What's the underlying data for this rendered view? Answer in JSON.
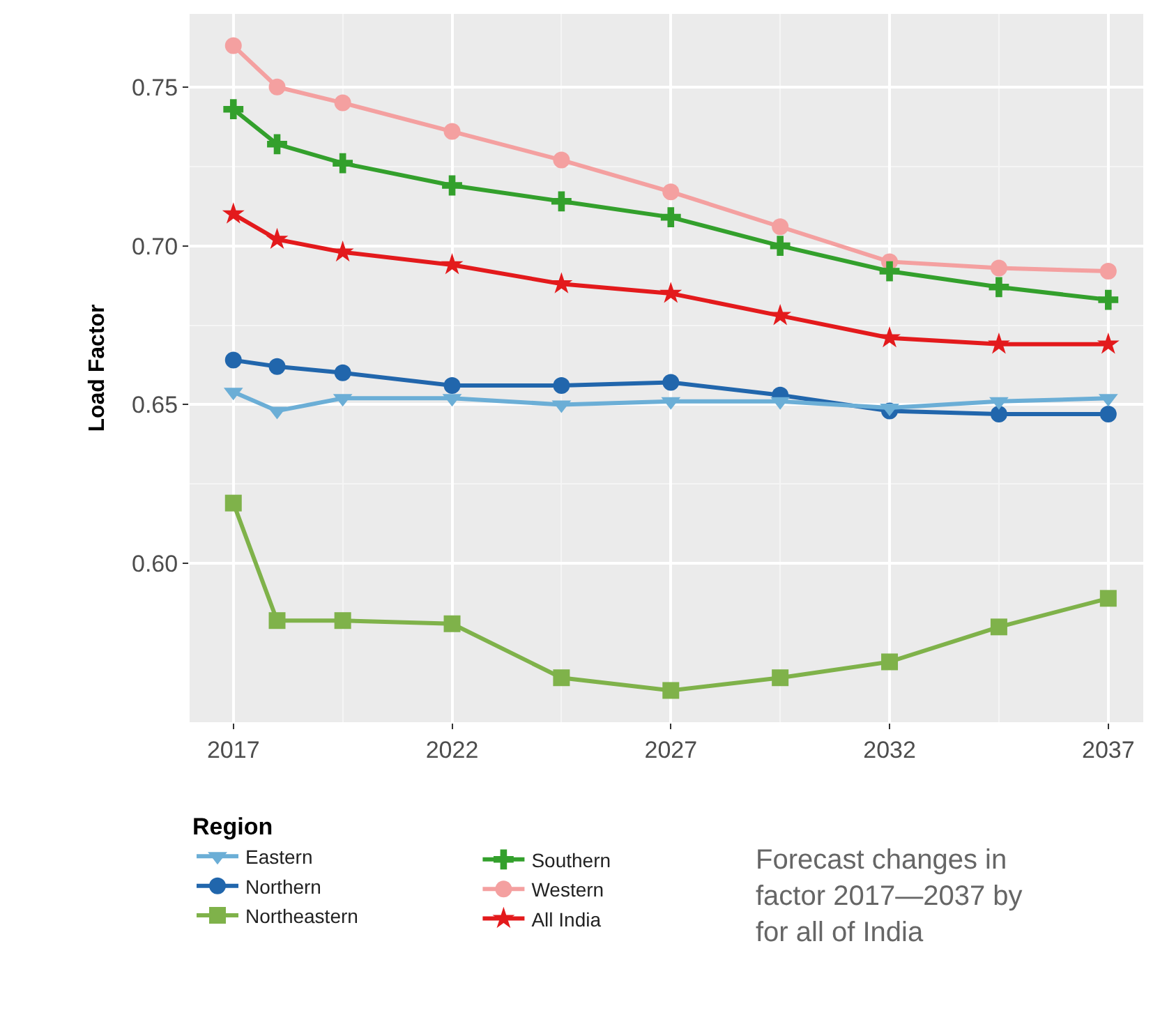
{
  "chart_data": {
    "type": "line",
    "ylabel": "Load Factor",
    "legend_title": "Region",
    "x": [
      2017,
      2018,
      2019.5,
      2022,
      2024.5,
      2027,
      2029.5,
      2032,
      2034.5,
      2037
    ],
    "xlim": [
      2016,
      2037.8
    ],
    "xticks": [
      2017,
      2022,
      2027,
      2032,
      2037
    ],
    "ylim": [
      0.55,
      0.773
    ],
    "yticks": [
      {
        "value": 0.6,
        "label": "0.60"
      },
      {
        "value": 0.65,
        "label": "0.65"
      },
      {
        "value": 0.7,
        "label": "0.70"
      },
      {
        "value": 0.75,
        "label": "0.75"
      }
    ],
    "grid": true,
    "legend": "bottom",
    "series": [
      {
        "name": "Eastern",
        "color": "#6baed6",
        "marker": "triangle",
        "values": [
          0.654,
          0.648,
          0.652,
          0.652,
          0.65,
          0.651,
          0.651,
          0.649,
          0.651,
          0.652
        ]
      },
      {
        "name": "Northern",
        "color": "#2166ac",
        "marker": "circle",
        "values": [
          0.664,
          0.662,
          0.66,
          0.656,
          0.656,
          0.657,
          0.653,
          0.648,
          0.647,
          0.647
        ]
      },
      {
        "name": "Northeastern",
        "color": "#7fb24a",
        "marker": "square",
        "values": [
          0.619,
          0.582,
          0.582,
          0.581,
          0.564,
          0.56,
          0.564,
          0.569,
          0.58,
          0.589
        ]
      },
      {
        "name": "Southern",
        "color": "#33a02c",
        "marker": "cross",
        "values": [
          0.743,
          0.732,
          0.726,
          0.719,
          0.714,
          0.709,
          0.7,
          0.692,
          0.687,
          0.683
        ]
      },
      {
        "name": "Western",
        "color": "#f4a0a0",
        "marker": "circle",
        "values": [
          0.763,
          0.75,
          0.745,
          0.736,
          0.727,
          0.717,
          0.706,
          0.695,
          0.693,
          0.692
        ]
      },
      {
        "name": "All India",
        "color": "#e31a1c",
        "marker": "star",
        "values": [
          0.71,
          0.702,
          0.698,
          0.694,
          0.688,
          0.685,
          0.678,
          0.671,
          0.669,
          0.669
        ]
      }
    ],
    "annotations": [
      "Forecast changes in\nfactor 2017—2037 by\nfor all of India"
    ]
  }
}
